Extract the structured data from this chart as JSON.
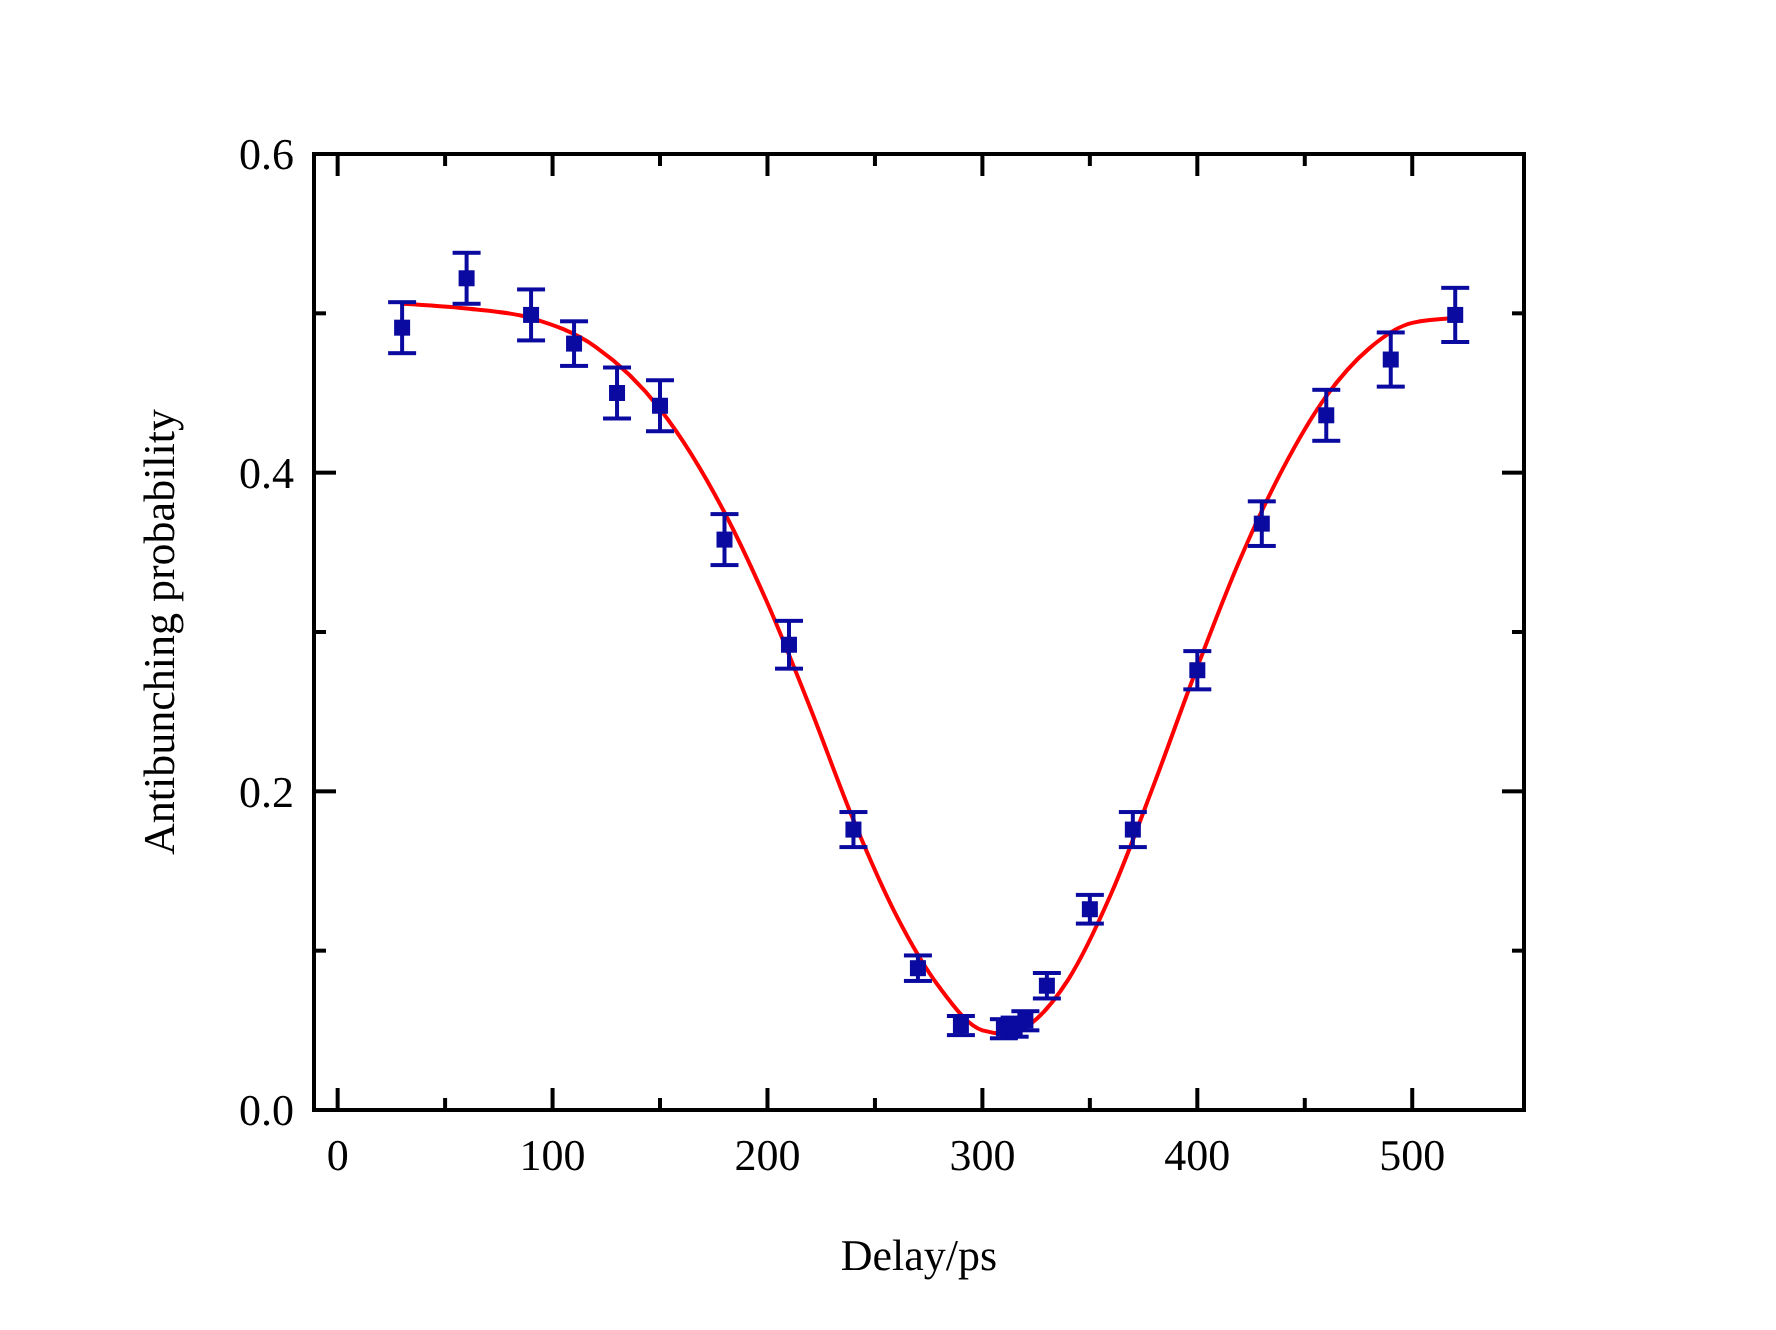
{
  "chart_data": {
    "type": "scatter",
    "xlabel": "Delay/ps",
    "ylabel": "Antibunching probability",
    "xlim": [
      -11,
      552
    ],
    "ylim": [
      0,
      0.6
    ],
    "xticks": [
      0,
      {
        "value": 50,
        "label": null
      },
      100,
      {
        "value": 150,
        "label": null
      },
      200,
      {
        "value": 250,
        "label": null
      },
      300,
      {
        "value": 350,
        "label": null
      },
      400,
      {
        "value": 450,
        "label": null
      },
      500
    ],
    "yticks": [
      {
        "value": 0,
        "label": "0.0"
      },
      {
        "value": 0.1,
        "label": null
      },
      0.2,
      {
        "value": 0.3,
        "label": null
      },
      0.4,
      {
        "value": 0.5,
        "label": null
      },
      0.6
    ],
    "grid": false,
    "series": [
      {
        "marker": "square",
        "color": "#0a0aa0",
        "x": [
          30,
          60,
          90,
          110,
          130,
          150,
          180,
          210,
          240,
          270,
          290,
          310,
          315,
          320,
          330,
          350,
          370,
          400,
          430,
          460,
          490,
          520
        ],
        "values": [
          0.491,
          0.522,
          0.499,
          0.481,
          0.45,
          0.442,
          0.358,
          0.292,
          0.176,
          0.089,
          0.053,
          0.051,
          0.052,
          0.056,
          0.078,
          0.126,
          0.176,
          0.276,
          0.368,
          0.436,
          0.471,
          0.499
        ],
        "errors": [
          0.016,
          0.016,
          0.016,
          0.014,
          0.016,
          0.016,
          0.016,
          0.015,
          0.011,
          0.008,
          0.006,
          0.006,
          0.006,
          0.006,
          0.008,
          0.009,
          0.011,
          0.012,
          0.014,
          0.016,
          0.017,
          0.017
        ]
      },
      {
        "type": "line",
        "color": "#ff0000",
        "line_style": "solid",
        "x": [
          30,
          60,
          90,
          120,
          150,
          180,
          200,
          220,
          240,
          260,
          280,
          300,
          310,
          320,
          340,
          360,
          380,
          400,
          420,
          440,
          460,
          480,
          500,
          520
        ],
        "values": [
          0.506,
          0.503,
          0.497,
          0.479,
          0.44,
          0.375,
          0.318,
          0.252,
          0.182,
          0.122,
          0.077,
          0.05,
          0.048,
          0.052,
          0.082,
          0.136,
          0.205,
          0.278,
          0.346,
          0.403,
          0.448,
          0.478,
          0.494,
          0.497
        ]
      }
    ]
  }
}
